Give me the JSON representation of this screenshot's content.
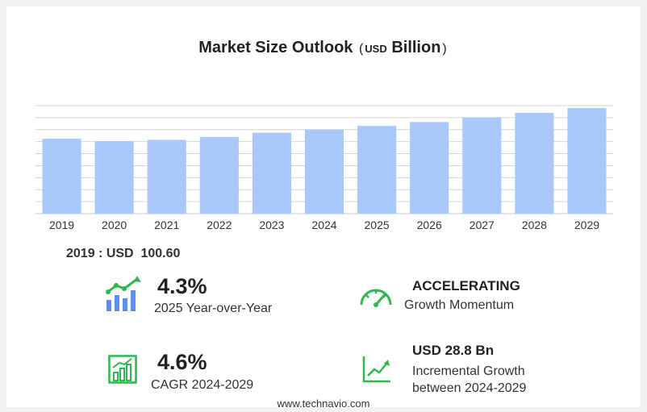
{
  "title": {
    "main": "Market Size Outlook",
    "unit_open": "(",
    "unit_currency": "USD",
    "unit_scale": "Billion",
    "unit_close": ")"
  },
  "chart_data": {
    "type": "bar",
    "categories": [
      "2019",
      "2020",
      "2021",
      "2022",
      "2023",
      "2024",
      "2025",
      "2026",
      "2027",
      "2028",
      "2029"
    ],
    "values": [
      100.6,
      97.4,
      99.1,
      103.0,
      108.6,
      112.9,
      117.8,
      123.0,
      129.0,
      135.3,
      141.7
    ],
    "ylim": [
      0,
      145
    ],
    "grid": true,
    "bar_color": "#a9c9fb",
    "grid_color": "#d4d4d4"
  },
  "summary": {
    "label": "2019 : USD",
    "value": "100.60"
  },
  "kpis": {
    "yoy": {
      "value": "4.3%",
      "caption": "2025 Year-over-Year"
    },
    "momentum": {
      "value": "ACCELERATING",
      "caption": "Growth Momentum"
    },
    "cagr": {
      "value": "4.6%",
      "caption": "CAGR 2024-2029"
    },
    "incremental": {
      "value": "USD 28.8 Bn",
      "caption_line1": "Incremental Growth",
      "caption_line2": "between 2024-2029"
    }
  },
  "colors": {
    "accent_green": "#2db84b",
    "accent_blue": "#5b8ef0"
  },
  "footer": "www.technavio.com"
}
